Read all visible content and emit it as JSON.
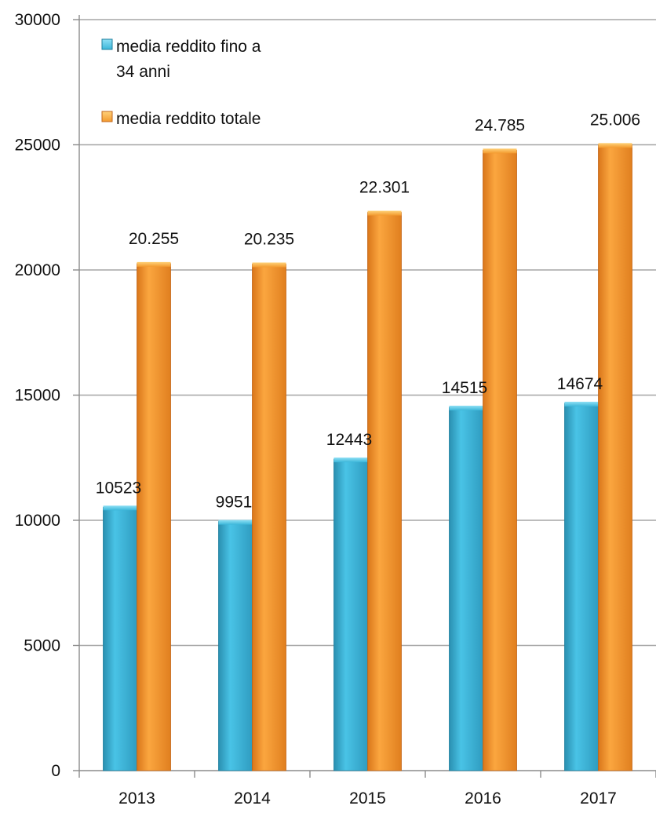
{
  "chart_data": {
    "type": "bar",
    "categories": [
      "2013",
      "2014",
      "2015",
      "2016",
      "2017"
    ],
    "series": [
      {
        "name": "media reddito fino a 34 anni",
        "legend_lines": [
          "media reddito fino a",
          "34 anni"
        ],
        "values": [
          10523,
          9951,
          12443,
          14515,
          14674
        ],
        "labels": [
          "10523",
          "9951",
          "12443",
          "14515",
          "14674"
        ],
        "color": "#3bb6d9"
      },
      {
        "name": "media reddito totale",
        "legend_lines": [
          "media reddito totale"
        ],
        "values": [
          20255,
          20235,
          22301,
          24785,
          25006
        ],
        "labels": [
          "20.255",
          "20.235",
          "22.301",
          "24.785",
          "25.006"
        ],
        "color": "#f39a2e"
      }
    ],
    "ylim": [
      0,
      30000
    ],
    "yticks": [
      0,
      5000,
      10000,
      15000,
      20000,
      25000,
      30000
    ],
    "grid": true,
    "legend_position": "top-left",
    "title": "",
    "xlabel": "",
    "ylabel": ""
  }
}
